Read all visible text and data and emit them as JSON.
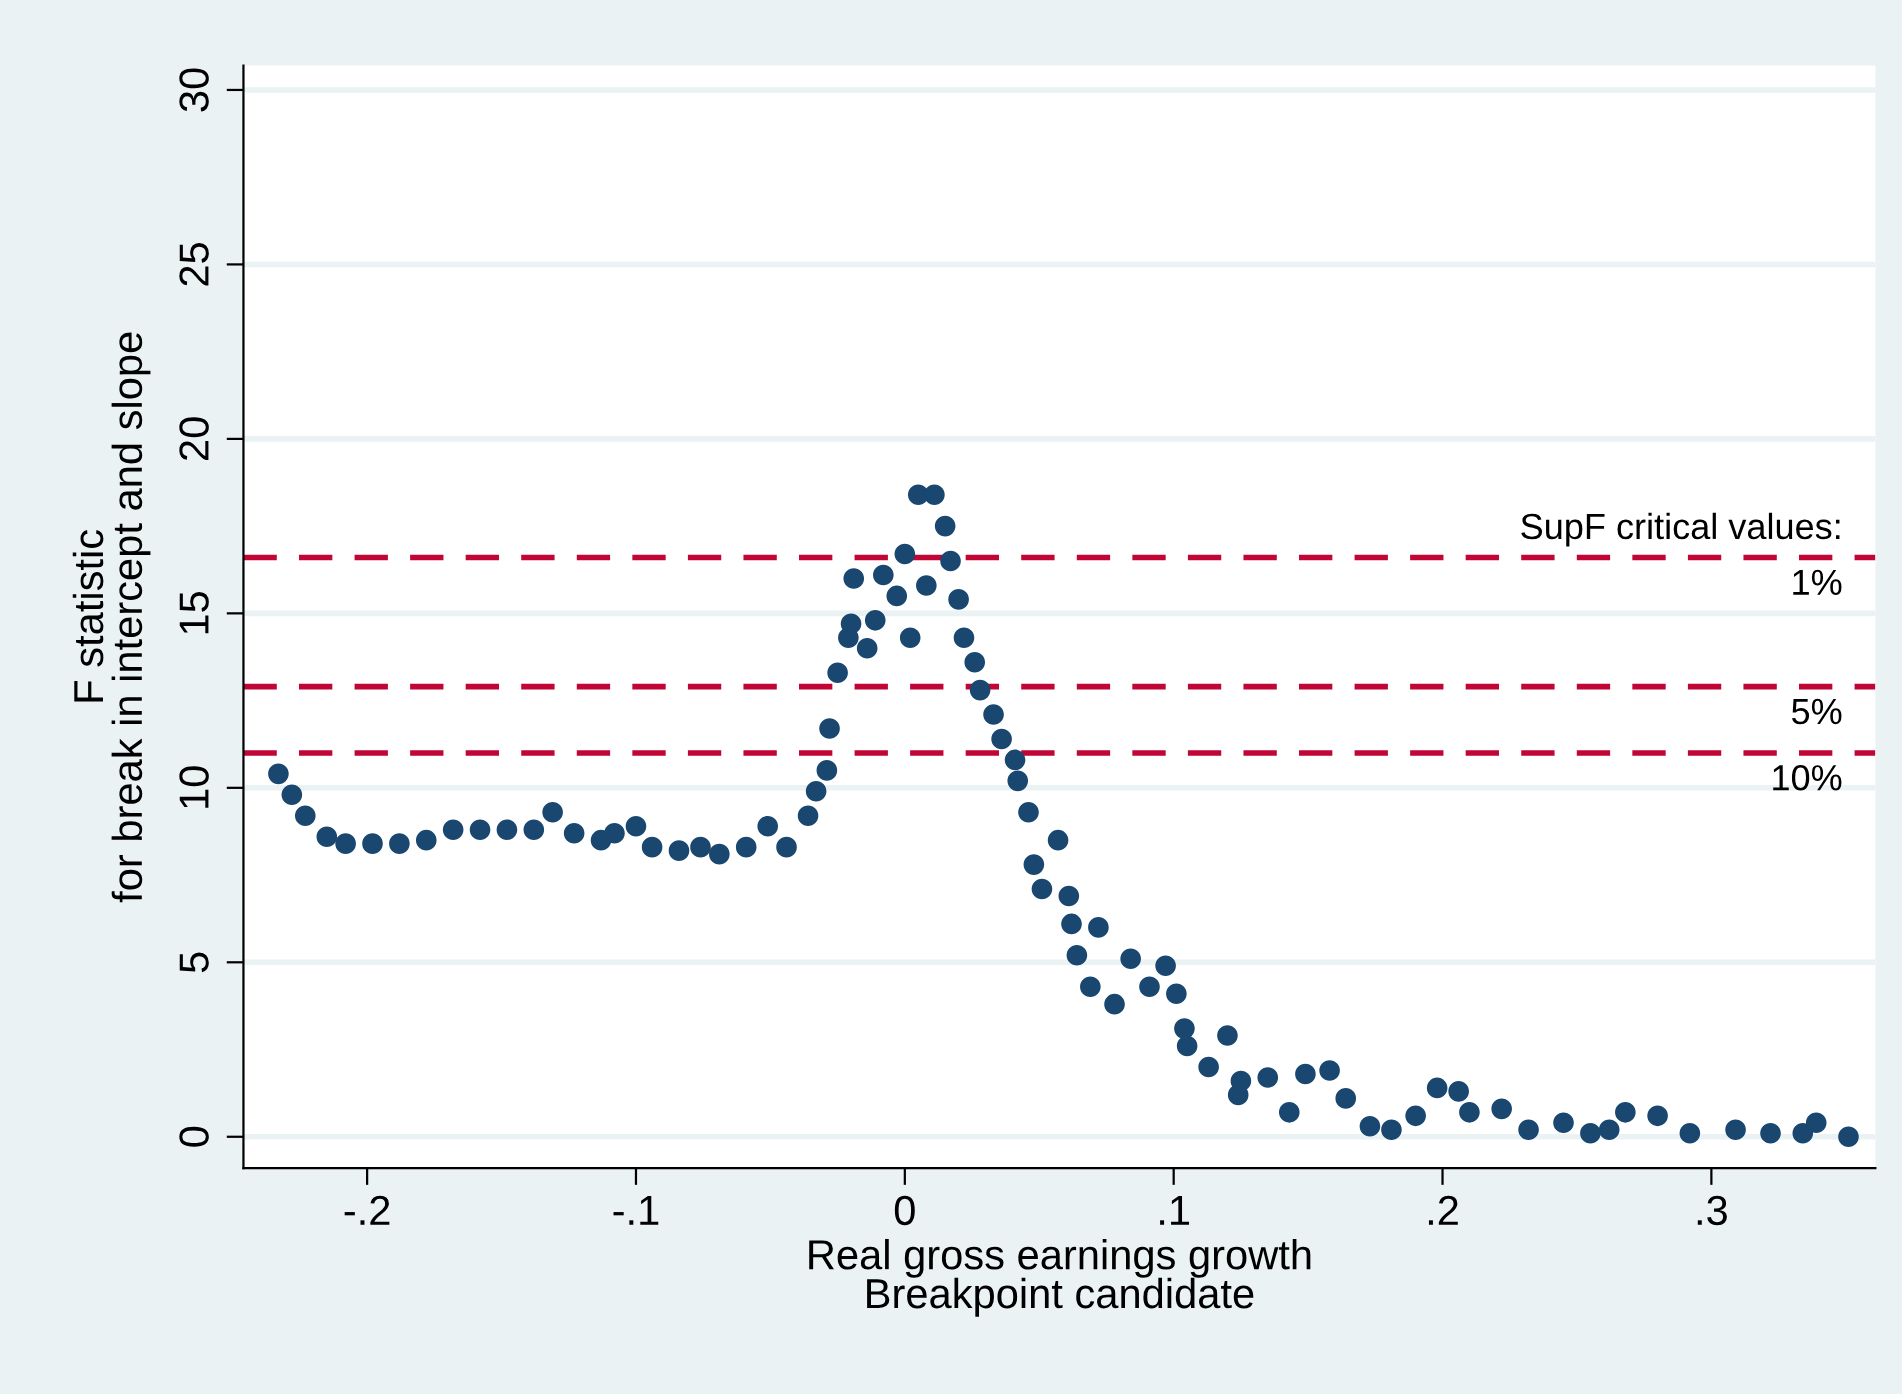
{
  "chart_data": {
    "type": "scatter",
    "xlabel": "Real gross earnings growth\nBreakpoint candidate",
    "ylabel": "F statistic\nfor break in intercept and slope",
    "x": [
      -0.233,
      -0.228,
      -0.223,
      -0.215,
      -0.208,
      -0.198,
      -0.188,
      -0.178,
      -0.168,
      -0.158,
      -0.148,
      -0.138,
      -0.131,
      -0.123,
      -0.113,
      -0.108,
      -0.1,
      -0.094,
      -0.084,
      -0.076,
      -0.069,
      -0.059,
      -0.051,
      -0.044,
      -0.036,
      -0.033,
      -0.029,
      -0.028,
      -0.025,
      -0.021,
      -0.02,
      -0.019,
      -0.014,
      -0.011,
      -0.008,
      -0.003,
      0.002,
      0.0,
      0.005,
      0.008,
      0.011,
      0.015,
      0.017,
      0.02,
      0.022,
      0.026,
      0.028,
      0.033,
      0.036,
      0.041,
      0.042,
      0.046,
      0.048,
      0.051,
      0.057,
      0.061,
      0.062,
      0.064,
      0.072,
      0.069,
      0.078,
      0.084,
      0.091,
      0.097,
      0.101,
      0.104,
      0.105,
      0.113,
      0.12,
      0.124,
      0.125,
      0.135,
      0.143,
      0.149,
      0.158,
      0.164,
      0.173,
      0.181,
      0.19,
      0.198,
      0.206,
      0.21,
      0.222,
      0.232,
      0.245,
      0.255,
      0.262,
      0.268,
      0.28,
      0.292,
      0.309,
      0.322,
      0.334,
      0.339,
      0.351
    ],
    "series": [
      {
        "color": "#1a476f",
        "values": [
          10.4,
          9.8,
          9.2,
          8.6,
          8.4,
          8.4,
          8.4,
          8.5,
          8.8,
          8.8,
          8.8,
          8.8,
          9.3,
          8.7,
          8.5,
          8.7,
          8.9,
          8.3,
          8.2,
          8.3,
          8.1,
          8.3,
          8.9,
          8.3,
          9.2,
          9.9,
          10.5,
          11.7,
          13.3,
          14.3,
          14.7,
          16.0,
          14.0,
          14.8,
          16.1,
          15.5,
          14.3,
          16.7,
          18.4,
          15.8,
          18.4,
          17.5,
          16.5,
          15.4,
          14.3,
          13.6,
          12.8,
          12.1,
          11.4,
          10.8,
          10.2,
          9.3,
          7.8,
          7.1,
          8.5,
          6.9,
          6.1,
          5.2,
          6.0,
          4.3,
          3.8,
          5.1,
          4.3,
          4.9,
          4.1,
          3.1,
          2.6,
          2.0,
          2.9,
          1.2,
          1.6,
          1.7,
          0.7,
          1.8,
          1.9,
          1.1,
          0.3,
          0.2,
          0.6,
          1.4,
          1.3,
          0.7,
          0.8,
          0.2,
          0.4,
          0.1,
          0.2,
          0.7,
          0.6,
          0.1,
          0.2,
          0.1,
          0.1,
          0.4,
          0.0
        ]
      }
    ],
    "marker": "circle",
    "xlim": [
      -0.246,
      0.361
    ],
    "ylim": [
      -0.9,
      30.7
    ],
    "xticks": [
      {
        "value": -0.2,
        "label": "-.2"
      },
      {
        "value": -0.1,
        "label": "-.1"
      },
      0,
      {
        "value": 0.1,
        "label": ".1"
      },
      {
        "value": 0.2,
        "label": ".2"
      },
      {
        "value": 0.3,
        "label": ".3"
      }
    ],
    "yticks": [
      0,
      5,
      10,
      15,
      20,
      25,
      30
    ],
    "grid": "y",
    "ref_lines": [
      {
        "axis": "y",
        "value": 16.6,
        "color": "#c10534",
        "line_style": "dashed"
      },
      {
        "axis": "y",
        "value": 12.9,
        "color": "#c10534",
        "line_style": "dashed"
      },
      {
        "axis": "y",
        "value": 11.0,
        "color": "#c10534",
        "line_style": "dashed"
      }
    ],
    "annotations": [
      "SupF critical values:",
      {
        "text": "1%",
        "y": 16.6
      },
      {
        "text": "5%",
        "y": 12.9
      },
      {
        "text": "10%",
        "y": 11.0
      }
    ]
  }
}
